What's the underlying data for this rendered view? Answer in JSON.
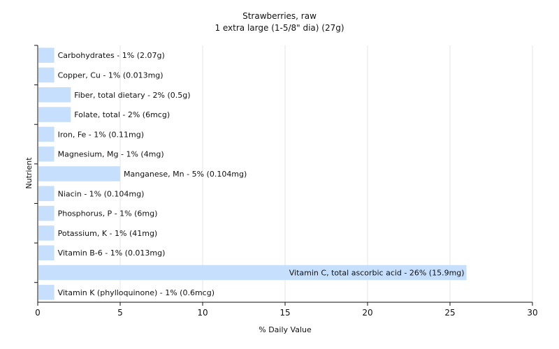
{
  "chart_data": {
    "type": "bar",
    "orientation": "horizontal",
    "title": "Strawberries, raw",
    "subtitle": "1 extra large (1-5/8\" dia) (27g)",
    "xlabel": "% Daily Value",
    "ylabel": "Nutrient",
    "xlim": [
      0,
      30
    ],
    "xticks": [
      0,
      5,
      10,
      15,
      20,
      25,
      30
    ],
    "grid": true,
    "bar_color": "#c5dffc",
    "categories": [
      "Carbohydrates",
      "Copper, Cu",
      "Fiber, total dietary",
      "Folate, total",
      "Iron, Fe",
      "Magnesium, Mg",
      "Manganese, Mn",
      "Niacin",
      "Phosphorus, P",
      "Potassium, K",
      "Vitamin B-6",
      "Vitamin C, total ascorbic acid",
      "Vitamin K (phylloquinone)"
    ],
    "values": [
      1,
      1,
      2,
      2,
      1,
      1,
      5,
      1,
      1,
      1,
      1,
      26,
      1
    ],
    "labels": [
      "Carbohydrates - 1% (2.07g)",
      "Copper, Cu - 1% (0.013mg)",
      "Fiber, total dietary - 2% (0.5g)",
      "Folate, total - 2% (6mcg)",
      "Iron, Fe - 1% (0.11mg)",
      "Magnesium, Mg - 1% (4mg)",
      "Manganese, Mn - 5% (0.104mg)",
      "Niacin - 1% (0.104mg)",
      "Phosphorus, P - 1% (6mg)",
      "Potassium, K - 1% (41mg)",
      "Vitamin B-6 - 1% (0.013mg)",
      "Vitamin C, total ascorbic acid - 26% (15.9mg)",
      "Vitamin K (phylloquinone) - 1% (0.6mcg)"
    ]
  }
}
